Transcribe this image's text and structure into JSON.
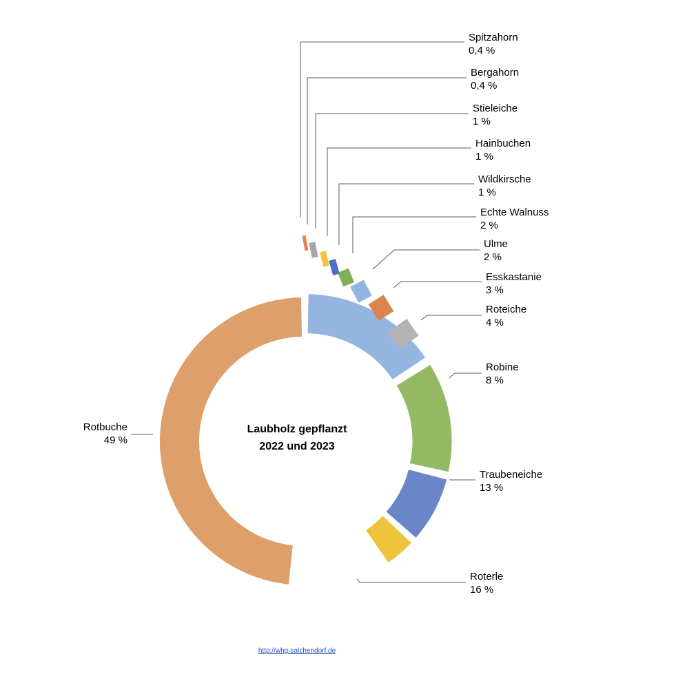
{
  "chart_data": {
    "type": "donut",
    "title_lines": [
      "Laubholz gepflanzt",
      "2022 und 2023"
    ],
    "unit": "%",
    "slices": [
      {
        "name": "Rotbuche",
        "value": 49,
        "label": "49 %",
        "color": "#DDA06A"
      },
      {
        "name": "Roterle",
        "value": 16,
        "label": "16 %",
        "color": "#93B5E0"
      },
      {
        "name": "Traubeneiche",
        "value": 13,
        "label": "13 %",
        "color": "#93B962"
      },
      {
        "name": "Robine",
        "value": 8,
        "label": "8 %",
        "color": "#6A85C8"
      },
      {
        "name": "Roteiche",
        "value": 4,
        "label": "4 %",
        "color": "#EDC53C"
      },
      {
        "name": "Esskastanie",
        "value": 3,
        "label": "3 %",
        "color": "#B3B3B3"
      },
      {
        "name": "Ulme",
        "value": 2,
        "label": "2 %",
        "color": "#D9854D"
      },
      {
        "name": "Echte Walnuss",
        "value": 2,
        "label": "2 %",
        "color": "#93B5E0"
      },
      {
        "name": "Wildkirsche",
        "value": 1,
        "label": "1 %",
        "color": "#82AE55"
      },
      {
        "name": "Hainbuchen",
        "value": 1,
        "label": "1 %",
        "color": "#4D6FBF"
      },
      {
        "name": "Stieleiche",
        "value": 1,
        "label": "1 %",
        "color": "#EDC53C"
      },
      {
        "name": "Bergahorn",
        "value": 0.4,
        "label": "0,4 %",
        "color": "#A6A6A6"
      },
      {
        "name": "Spitzahorn",
        "value": 0.4,
        "label": "0,4 %",
        "color": "#D9854D"
      }
    ]
  },
  "footer": {
    "link_text": "http://whg-salchendorf.de"
  }
}
